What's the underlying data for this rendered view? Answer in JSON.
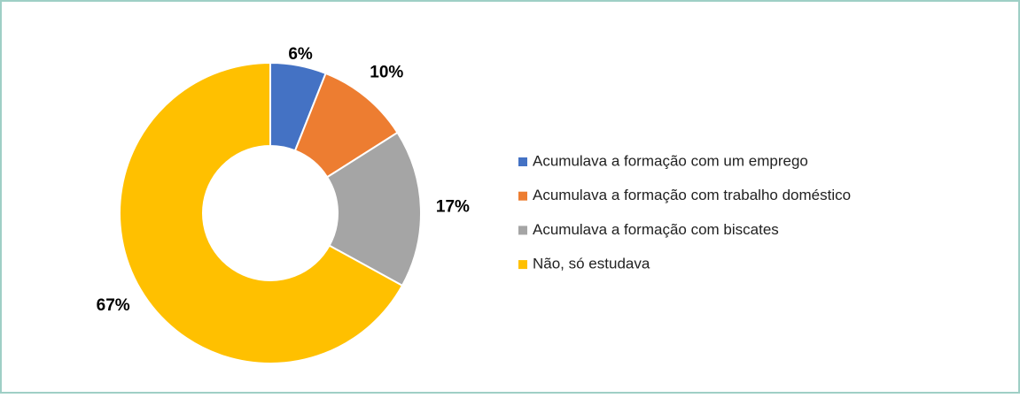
{
  "chart_data": {
    "type": "donut",
    "categories": [
      "Acumulava a formação com um emprego",
      "Acumulava a formação com trabalho doméstico",
      "Acumulava a formação com biscates",
      "Não, só estudava"
    ],
    "values": [
      6,
      10,
      17,
      67
    ],
    "value_labels": [
      "6%",
      "10%",
      "17%",
      "67%"
    ],
    "colors": [
      "#4472c4",
      "#ed7d31",
      "#a5a5a5",
      "#ffc000"
    ],
    "legend": "right"
  }
}
